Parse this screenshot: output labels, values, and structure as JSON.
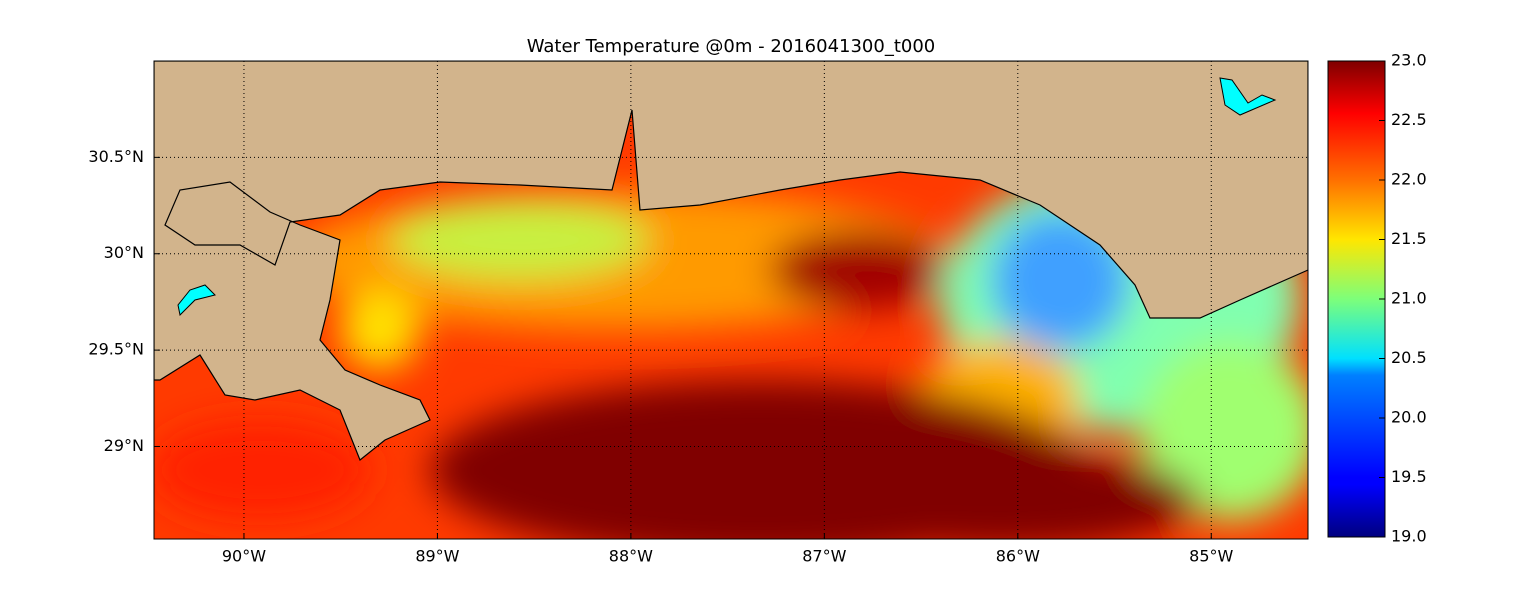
{
  "chart_data": {
    "type": "heatmap-map",
    "title": "Water Temperature @0m - 2016041300_t000",
    "xlim": [
      -90.465,
      -84.5
    ],
    "ylim": [
      28.52,
      31.0
    ],
    "xticks": [
      {
        "value": -90,
        "label": "90°W"
      },
      {
        "value": -89,
        "label": "89°W"
      },
      {
        "value": -88,
        "label": "88°W"
      },
      {
        "value": -87,
        "label": "87°W"
      },
      {
        "value": -86,
        "label": "86°W"
      },
      {
        "value": -85,
        "label": "85°W"
      }
    ],
    "yticks": [
      {
        "value": 29,
        "label": "29°N"
      },
      {
        "value": 29.5,
        "label": "29.5°N"
      },
      {
        "value": 30,
        "label": "30°N"
      },
      {
        "value": 30.5,
        "label": "30.5°N"
      }
    ],
    "grid": true,
    "clim": [
      19,
      23
    ],
    "cticks": [
      {
        "value": 19,
        "label": "19.0"
      },
      {
        "value": 19.5,
        "label": "19.5"
      },
      {
        "value": 20,
        "label": "20.0"
      },
      {
        "value": 20.5,
        "label": "20.5"
      },
      {
        "value": 21,
        "label": "21.0"
      },
      {
        "value": 21.5,
        "label": "21.5"
      },
      {
        "value": 22,
        "label": "22.0"
      },
      {
        "value": 22.5,
        "label": "22.5"
      },
      {
        "value": 23,
        "label": "23.0"
      }
    ]
  }
}
